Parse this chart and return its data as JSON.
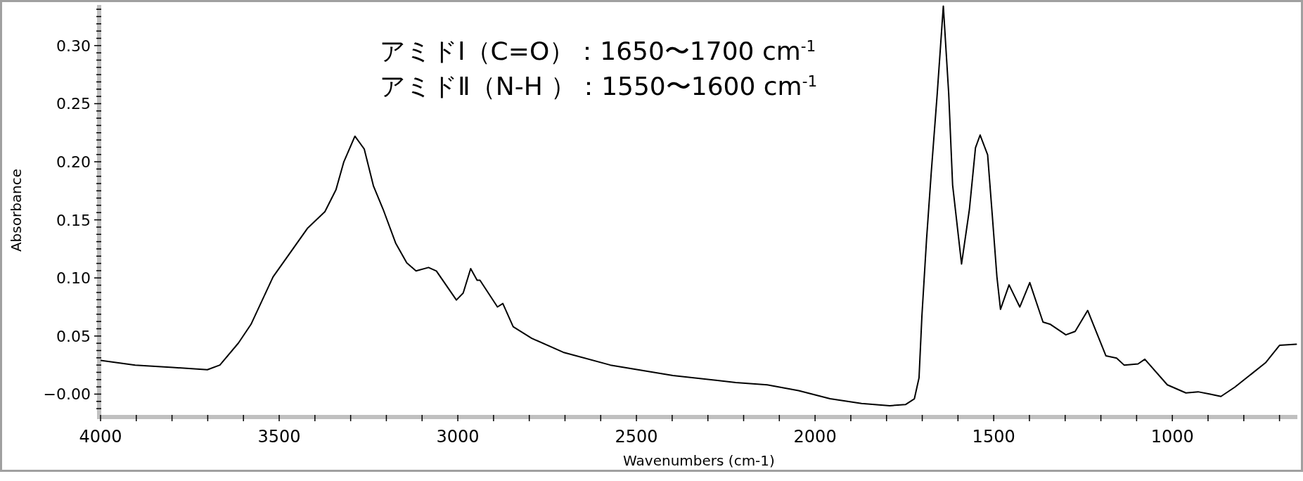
{
  "chart_data": {
    "type": "line",
    "xlabel": "Wavenumbers (cm-1)",
    "ylabel": "Absorbance",
    "annotations": [
      "アミドⅠ（C=O）：1650〜1700 cm$^{-1}$",
      "アミドⅡ（N-H ）：1550〜1600 cm$^{-1}$"
    ],
    "xlim": [
      4000,
      650
    ],
    "ylim": [
      -0.0185,
      0.335
    ],
    "xticks": [
      4000,
      {
        "value": 3900,
        "label": null
      },
      {
        "value": 3800,
        "label": null
      },
      {
        "value": 3700,
        "label": null
      },
      {
        "value": 3600,
        "label": null
      },
      3500,
      {
        "value": 3400,
        "label": null
      },
      {
        "value": 3300,
        "label": null
      },
      {
        "value": 3200,
        "label": null
      },
      {
        "value": 3100,
        "label": null
      },
      3000,
      {
        "value": 2900,
        "label": null
      },
      {
        "value": 2800,
        "label": null
      },
      {
        "value": 2700,
        "label": null
      },
      {
        "value": 2600,
        "label": null
      },
      2500,
      {
        "value": 2400,
        "label": null
      },
      {
        "value": 2300,
        "label": null
      },
      {
        "value": 2200,
        "label": null
      },
      {
        "value": 2100,
        "label": null
      },
      2000,
      {
        "value": 1900,
        "label": null
      },
      {
        "value": 1800,
        "label": null
      },
      {
        "value": 1700,
        "label": null
      },
      {
        "value": 1600,
        "label": null
      },
      1500,
      {
        "value": 1400,
        "label": null
      },
      {
        "value": 1300,
        "label": null
      },
      {
        "value": 1200,
        "label": null
      },
      {
        "value": 1100,
        "label": null
      },
      1000,
      {
        "value": 900,
        "label": null
      },
      {
        "value": 800,
        "label": null
      },
      {
        "value": 700,
        "label": null
      }
    ],
    "yticks": [
      {
        "value": -0.0125,
        "label": null
      },
      {
        "value": -0.00625,
        "label": null
      },
      {
        "value": 0,
        "label": "−0.00"
      },
      {
        "value": 0.00625,
        "label": null
      },
      {
        "value": 0.0125,
        "label": null
      },
      {
        "value": 0.01875,
        "label": null
      },
      {
        "value": 0.025,
        "label": null
      },
      {
        "value": 0.03125,
        "label": null
      },
      {
        "value": 0.0375,
        "label": null
      },
      {
        "value": 0.04375,
        "label": null
      },
      {
        "value": 0.05,
        "label": "0.05"
      },
      {
        "value": 0.05625,
        "label": null
      },
      {
        "value": 0.0625,
        "label": null
      },
      {
        "value": 0.06875,
        "label": null
      },
      {
        "value": 0.075,
        "label": null
      },
      {
        "value": 0.08125,
        "label": null
      },
      {
        "value": 0.0875,
        "label": null
      },
      {
        "value": 0.09375,
        "label": null
      },
      {
        "value": 0.1,
        "label": "0.10"
      },
      {
        "value": 0.10625,
        "label": null
      },
      {
        "value": 0.1125,
        "label": null
      },
      {
        "value": 0.11875,
        "label": null
      },
      {
        "value": 0.125,
        "label": null
      },
      {
        "value": 0.13125,
        "label": null
      },
      {
        "value": 0.1375,
        "label": null
      },
      {
        "value": 0.14375,
        "label": null
      },
      {
        "value": 0.15,
        "label": "0.15"
      },
      {
        "value": 0.15625,
        "label": null
      },
      {
        "value": 0.1625,
        "label": null
      },
      {
        "value": 0.16875,
        "label": null
      },
      {
        "value": 0.175,
        "label": null
      },
      {
        "value": 0.18125,
        "label": null
      },
      {
        "value": 0.1875,
        "label": null
      },
      {
        "value": 0.19375,
        "label": null
      },
      {
        "value": 0.2,
        "label": "0.20"
      },
      {
        "value": 0.20625,
        "label": null
      },
      {
        "value": 0.2125,
        "label": null
      },
      {
        "value": 0.21875,
        "label": null
      },
      {
        "value": 0.225,
        "label": null
      },
      {
        "value": 0.23125,
        "label": null
      },
      {
        "value": 0.2375,
        "label": null
      },
      {
        "value": 0.24375,
        "label": null
      },
      {
        "value": 0.25,
        "label": "0.25"
      },
      {
        "value": 0.25625,
        "label": null
      },
      {
        "value": 0.2625,
        "label": null
      },
      {
        "value": 0.26875,
        "label": null
      },
      {
        "value": 0.275,
        "label": null
      },
      {
        "value": 0.28125,
        "label": null
      },
      {
        "value": 0.2875,
        "label": null
      },
      {
        "value": 0.29375,
        "label": null
      },
      {
        "value": 0.3,
        "label": "0.30"
      },
      {
        "value": 0.30625,
        "label": null
      },
      {
        "value": 0.3125,
        "label": null
      },
      {
        "value": 0.31875,
        "label": null
      },
      {
        "value": 0.325,
        "label": null
      },
      {
        "value": 0.33125,
        "label": null
      }
    ],
    "marker": "none",
    "line_style": "solid",
    "series": [
      {
        "color": "#000000",
        "x": [
          4000,
          3903,
          3798,
          3701,
          3666,
          3614,
          3579,
          3517,
          3473,
          3420,
          3372,
          3341,
          3319,
          3288,
          3262,
          3236,
          3209,
          3174,
          3143,
          3117,
          3082,
          3060,
          3004,
          2985,
          2964,
          2946,
          2938,
          2889,
          2874,
          2845,
          2793,
          2705,
          2573,
          2398,
          2222,
          2134,
          2046,
          1958,
          1870,
          1791,
          1747,
          1722,
          1709,
          1701,
          1688,
          1675,
          1658,
          1641,
          1626,
          1615,
          1590,
          1568,
          1551,
          1538,
          1517,
          1504,
          1491,
          1481,
          1457,
          1427,
          1399,
          1362,
          1341,
          1298,
          1272,
          1237,
          1186,
          1156,
          1135,
          1096,
          1077,
          1014,
          962,
          928,
          894,
          864,
          825,
          739,
          700,
          653
        ],
        "values": [
          0.029,
          0.025,
          0.023,
          0.021,
          0.025,
          0.044,
          0.06,
          0.101,
          0.12,
          0.143,
          0.157,
          0.176,
          0.2,
          0.222,
          0.211,
          0.179,
          0.159,
          0.13,
          0.113,
          0.106,
          0.109,
          0.106,
          0.081,
          0.087,
          0.108,
          0.098,
          0.098,
          0.075,
          0.078,
          0.058,
          0.048,
          0.036,
          0.025,
          0.016,
          0.01,
          0.008,
          0.003,
          -0.004,
          -0.008,
          -0.01,
          -0.009,
          -0.004,
          0.014,
          0.067,
          0.133,
          0.19,
          0.259,
          0.334,
          0.259,
          0.18,
          0.112,
          0.159,
          0.212,
          0.223,
          0.206,
          0.154,
          0.101,
          0.073,
          0.094,
          0.075,
          0.096,
          0.062,
          0.06,
          0.051,
          0.054,
          0.072,
          0.033,
          0.031,
          0.025,
          0.026,
          0.03,
          0.008,
          0.001,
          0.002,
          0.0,
          -0.002,
          0.006,
          0.027,
          0.042,
          0.043
        ]
      }
    ]
  }
}
